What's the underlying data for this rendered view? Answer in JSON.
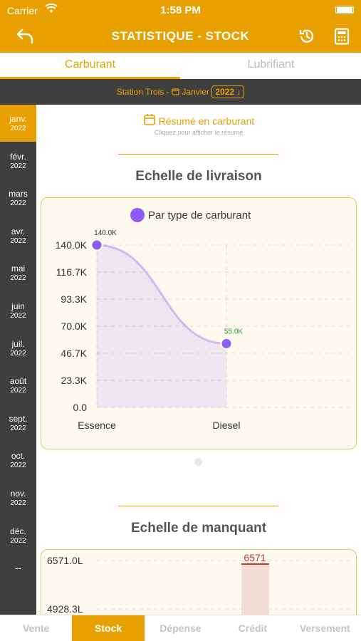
{
  "status": {
    "carrier": "Carrier",
    "time": "1:58 PM"
  },
  "header": {
    "title": "STATISTIQUE - STOCK",
    "back_icon": "back-arrow-icon",
    "history_icon": "history-icon",
    "calculator_icon": "calculator-icon"
  },
  "tabs": [
    {
      "label": "Carburant",
      "active": true
    },
    {
      "label": "Lubrifiant",
      "active": false
    }
  ],
  "station": {
    "name": "Station Trois -",
    "month": "Janvier",
    "year": "2022",
    "calendar_icon": "calendar-icon",
    "chevron_icon": "arrow-down-icon"
  },
  "months": [
    {
      "label": "janv.",
      "year": "2022",
      "active": true
    },
    {
      "label": "févr.",
      "year": "2022"
    },
    {
      "label": "mars",
      "year": "2022"
    },
    {
      "label": "avr.",
      "year": "2022"
    },
    {
      "label": "mai",
      "year": "2022"
    },
    {
      "label": "juin",
      "year": "2022"
    },
    {
      "label": "juil.",
      "year": "2022"
    },
    {
      "label": "août",
      "year": "2022"
    },
    {
      "label": "sept.",
      "year": "2022"
    },
    {
      "label": "oct.",
      "year": "2022"
    },
    {
      "label": "nov.",
      "year": "2022"
    },
    {
      "label": "déc.",
      "year": "2022"
    }
  ],
  "months_more": "--",
  "summary": {
    "title": "Résumé en carburant",
    "subtitle": "Cliquez pour afficher le résumé"
  },
  "section1": {
    "title": "Echelle de livraison"
  },
  "section2": {
    "title": "Echelle de manquant"
  },
  "colors": {
    "accent": "#E8A000",
    "series": "#8B5CF6",
    "dark": "#3F3F3F",
    "bar": "#F2DDD3",
    "bar_line": "#C0392B"
  },
  "chart_data": [
    {
      "type": "area",
      "legend": "Par type de carburant",
      "categories": [
        "Essence",
        "Diesel"
      ],
      "series": [
        {
          "name": "Par type de carburant",
          "values": [
            140000,
            55000
          ]
        }
      ],
      "data_labels": [
        "140.0K",
        "55.0K"
      ],
      "y_ticks": [
        "140.0K",
        "116.7K",
        "93.3K",
        "70.0K",
        "46.7K",
        "23.3K",
        "0.0"
      ],
      "ylim": [
        0,
        140000
      ]
    },
    {
      "type": "bar",
      "values": [
        6571
      ],
      "data_labels": [
        "6571"
      ],
      "y_ticks": [
        "6571.0L",
        "4928.3L"
      ]
    }
  ],
  "bottom_nav": [
    {
      "label": "Vente",
      "active": false
    },
    {
      "label": "Stock",
      "active": true
    },
    {
      "label": "Dépense",
      "active": false
    },
    {
      "label": "Crédit",
      "active": false
    },
    {
      "label": "Versement",
      "active": false
    }
  ]
}
